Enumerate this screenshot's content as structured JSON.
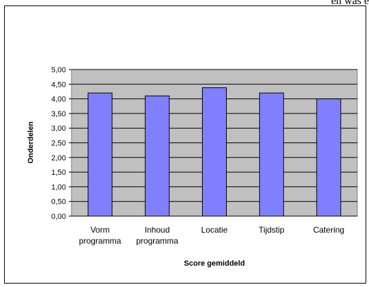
{
  "page_text": "en was e",
  "chart_data": {
    "type": "bar",
    "categories": [
      "Vorm programma",
      "Inhoud programma",
      "Locatie",
      "Tijdstip",
      "Catering"
    ],
    "values": [
      4.2,
      4.1,
      4.38,
      4.2,
      4.0
    ],
    "color": "#8080ff",
    "xlabel": "Score gemiddeld",
    "ylabel": "Onderdelen",
    "ylim": [
      0,
      5
    ],
    "yticks": [
      {
        "value": 0,
        "label": "0,00"
      },
      {
        "value": 0.5,
        "label": "0,50"
      },
      {
        "value": 1,
        "label": "1,00"
      },
      {
        "value": 1.5,
        "label": "1,50"
      },
      {
        "value": 2,
        "label": "2,00"
      },
      {
        "value": 2.5,
        "label": "2,50"
      },
      {
        "value": 3,
        "label": "3,00"
      },
      {
        "value": 3.5,
        "label": "3,50"
      },
      {
        "value": 4,
        "label": "4,00"
      },
      {
        "value": 4.5,
        "label": "4,50"
      },
      {
        "value": 5,
        "label": "5,00"
      }
    ],
    "grid": true
  }
}
